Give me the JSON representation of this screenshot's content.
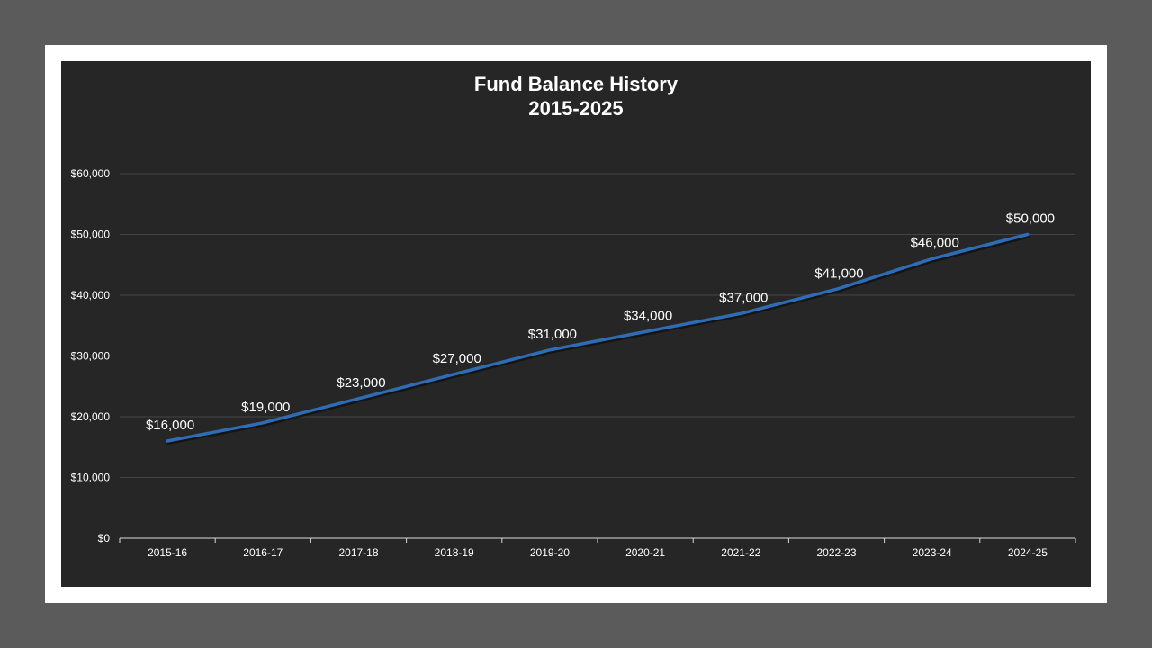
{
  "chart_data": {
    "type": "line",
    "title": "Fund Balance History",
    "subtitle": "2015-2025",
    "xlabel": "",
    "ylabel": "",
    "categories": [
      "2015-16",
      "2016-17",
      "2017-18",
      "2018-19",
      "2019-20",
      "2020-21",
      "2021-22",
      "2022-23",
      "2023-24",
      "2024-25"
    ],
    "series": [
      {
        "values": [
          16000,
          19000,
          23000,
          27000,
          31000,
          34000,
          37000,
          41000,
          46000,
          50000
        ],
        "data_labels": [
          "$16,000",
          "$19,000",
          "$23,000",
          "$27,000",
          "$31,000",
          "$34,000",
          "$37,000",
          "$41,000",
          "$46,000",
          "$50,000"
        ]
      }
    ],
    "ylim": [
      0,
      60000
    ],
    "yticks": [
      0,
      10000,
      20000,
      30000,
      40000,
      50000,
      60000
    ],
    "ytick_labels": [
      "$0",
      "$10,000",
      "$20,000",
      "$30,000",
      "$40,000",
      "$50,000",
      "$60,000"
    ],
    "grid": true,
    "legend": "none"
  },
  "colors": {
    "page_background": "#5b5b5b",
    "frame": "#ffffff",
    "plot_background": "#262626",
    "line": "#2e6db5",
    "gridline": "#444444",
    "text": "#ffffff"
  }
}
